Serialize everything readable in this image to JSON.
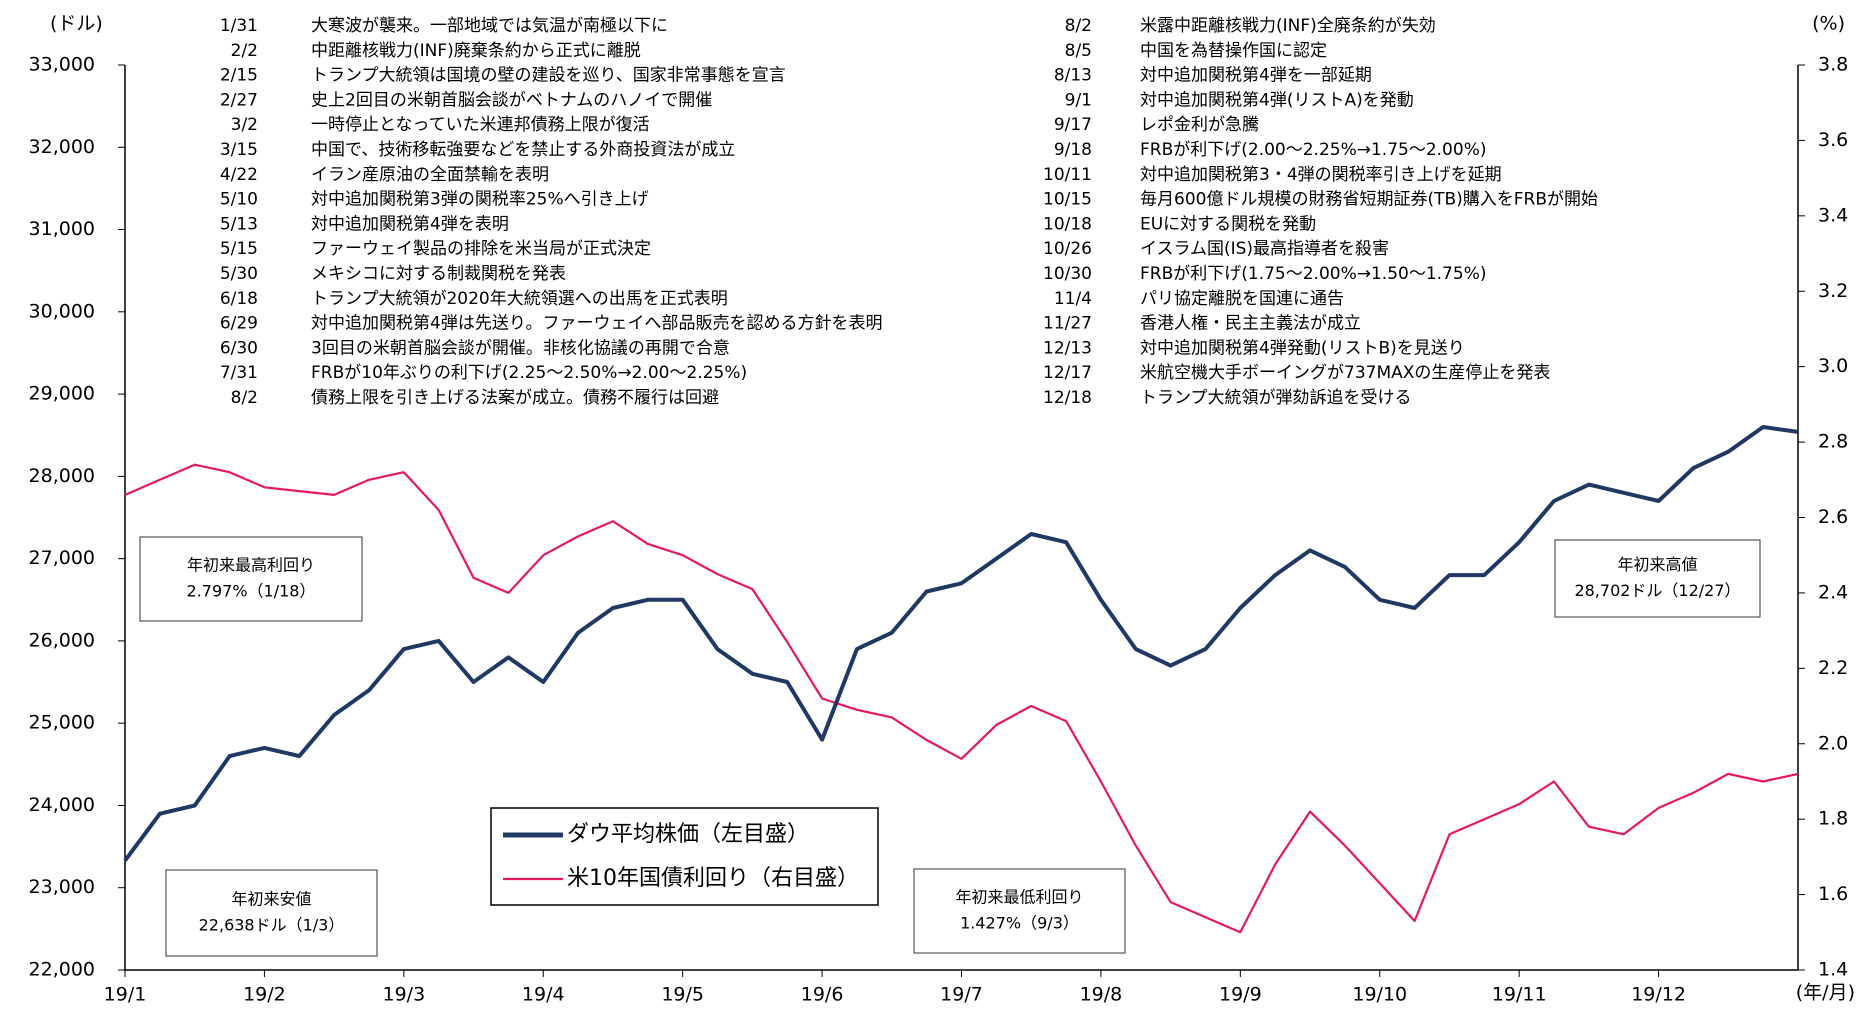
{
  "chart_data": {
    "type": "line",
    "y_unit": "(ドル)",
    "y2_unit": "(%)",
    "x_unit": "(年/月)",
    "categories": [
      "19/1",
      null,
      null,
      null,
      "19/2",
      null,
      null,
      null,
      "19/3",
      null,
      null,
      null,
      "19/4",
      null,
      null,
      null,
      "19/5",
      null,
      null,
      null,
      "19/6",
      null,
      null,
      null,
      "19/7",
      null,
      null,
      null,
      "19/8",
      null,
      null,
      null,
      "19/9",
      null,
      null,
      null,
      "19/10",
      null,
      null,
      null,
      "19/11",
      null,
      null,
      null,
      "19/12",
      null,
      null,
      null,
      null
    ],
    "series": [
      {
        "name": "ダウ平均株価（左目盛）",
        "color": "#1f3864",
        "axis": "y",
        "values": [
          23330,
          23900,
          24000,
          24600,
          24700,
          24600,
          25100,
          25400,
          25900,
          26000,
          25500,
          25800,
          25500,
          26100,
          26400,
          26500,
          26500,
          25900,
          25600,
          25500,
          24800,
          25900,
          26100,
          26600,
          26700,
          27000,
          27300,
          27200,
          26500,
          25900,
          25700,
          25900,
          26400,
          26800,
          27100,
          26900,
          26500,
          26400,
          26800,
          26800,
          27200,
          27700,
          27900,
          27800,
          27700,
          28100,
          28300,
          28600,
          28540
        ]
      },
      {
        "name": "米10年国債利回り（右目盛）",
        "color": "#e6195f",
        "axis": "y2",
        "values": [
          2.66,
          2.7,
          2.74,
          2.72,
          2.68,
          2.67,
          2.66,
          2.7,
          2.72,
          2.62,
          2.44,
          2.4,
          2.5,
          2.55,
          2.59,
          2.53,
          2.5,
          2.45,
          2.41,
          2.27,
          2.12,
          2.09,
          2.07,
          2.01,
          1.96,
          2.05,
          2.1,
          2.06,
          1.9,
          1.73,
          1.58,
          1.54,
          1.5,
          1.68,
          1.82,
          1.73,
          1.63,
          1.53,
          1.76,
          1.8,
          1.84,
          1.9,
          1.78,
          1.76,
          1.83,
          1.87,
          1.92,
          1.9,
          1.92
        ]
      }
    ],
    "ylim": [
      22000,
      33000
    ],
    "yticks": [
      {
        "value": 22000,
        "label": "22,000"
      },
      {
        "value": 23000,
        "label": "23,000"
      },
      {
        "value": 24000,
        "label": "24,000"
      },
      {
        "value": 25000,
        "label": "25,000"
      },
      {
        "value": 26000,
        "label": "26,000"
      },
      {
        "value": 27000,
        "label": "27,000"
      },
      {
        "value": 28000,
        "label": "28,000"
      },
      {
        "value": 29000,
        "label": "29,000"
      },
      {
        "value": 30000,
        "label": "30,000"
      },
      {
        "value": 31000,
        "label": "31,000"
      },
      {
        "value": 32000,
        "label": "32,000"
      },
      {
        "value": 33000,
        "label": "33,000"
      }
    ],
    "y2lim": [
      1.4,
      3.8
    ],
    "y2ticks": [
      1.4,
      1.6,
      1.8,
      {
        "value": 2,
        "label": "2.0"
      },
      2.2,
      2.4,
      2.6,
      2.8,
      {
        "value": 3,
        "label": "3.0"
      },
      3.2,
      3.4,
      3.6,
      3.8
    ],
    "legend": "bottom-center",
    "callouts": [
      {
        "lines": [
          "年初来最高利回り",
          "2.797%（1/18）"
        ]
      },
      {
        "lines": [
          "年初来安値",
          "22,638ドル（1/3）"
        ]
      },
      {
        "lines": [
          "年初来最低利回り",
          "1.427%（9/3）"
        ]
      },
      {
        "lines": [
          "年初来高値",
          "28,702ドル（12/27）"
        ]
      }
    ],
    "events": [
      [
        "1/31",
        "大寒波が襲来。一部地域では気温が南極以下に"
      ],
      [
        "2/2",
        "中距離核戦力(INF)廃棄条約から正式に離脱"
      ],
      [
        "2/15",
        "トランプ大統領は国境の壁の建設を巡り、国家非常事態を宣言"
      ],
      [
        "2/27",
        "史上2回目の米朝首脳会談がベトナムのハノイで開催"
      ],
      [
        "3/2",
        "一時停止となっていた米連邦債務上限が復活"
      ],
      [
        "3/15",
        "中国で、技術移転強要などを禁止する外商投資法が成立"
      ],
      [
        "4/22",
        "イラン産原油の全面禁輸を表明"
      ],
      [
        "5/10",
        "対中追加関税第3弾の関税率25%へ引き上げ"
      ],
      [
        "5/13",
        "対中追加関税第4弾を表明"
      ],
      [
        "5/15",
        "ファーウェイ製品の排除を米当局が正式決定"
      ],
      [
        "5/30",
        "メキシコに対する制裁関税を発表"
      ],
      [
        "6/18",
        "トランプ大統領が2020年大統領選への出馬を正式表明"
      ],
      [
        "6/29",
        "対中追加関税第4弾は先送り。ファーウェイへ部品販売を認める方針を表明"
      ],
      [
        "6/30",
        "3回目の米朝首脳会談が開催。非核化協議の再開で合意"
      ],
      [
        "7/31",
        "FRBが10年ぶりの利下げ(2.25～2.50%→2.00～2.25%)"
      ],
      [
        "8/2",
        "債務上限を引き上げる法案が成立。債務不履行は回避"
      ],
      [
        "8/2",
        "米露中距離核戦力(INF)全廃条約が失効"
      ],
      [
        "8/5",
        "中国を為替操作国に認定"
      ],
      [
        "8/13",
        "対中追加関税第4弾を一部延期"
      ],
      [
        "9/1",
        "対中追加関税第4弾(リストA)を発動"
      ],
      [
        "9/17",
        "レポ金利が急騰"
      ],
      [
        "9/18",
        "FRBが利下げ(2.00～2.25%→1.75～2.00%)"
      ],
      [
        "10/11",
        "対中追加関税第3・4弾の関税率引き上げを延期"
      ],
      [
        "10/15",
        "毎月600億ドル規模の財務省短期証券(TB)購入をFRBが開始"
      ],
      [
        "10/18",
        "EUに対する関税を発動"
      ],
      [
        "10/26",
        "イスラム国(IS)最高指導者を殺害"
      ],
      [
        "10/30",
        "FRBが利下げ(1.75～2.00%→1.50～1.75%)"
      ],
      [
        "11/4",
        "パリ協定離脱を国連に通告"
      ],
      [
        "11/27",
        "香港人権・民主主義法が成立"
      ],
      [
        "12/13",
        "対中追加関税第4弾発動(リストB)を見送り"
      ],
      [
        "12/17",
        "米航空機大手ボーイングが737MAXの生産停止を発表"
      ],
      [
        "12/18",
        "トランプ大統領が弾劾訴追を受ける"
      ]
    ]
  }
}
